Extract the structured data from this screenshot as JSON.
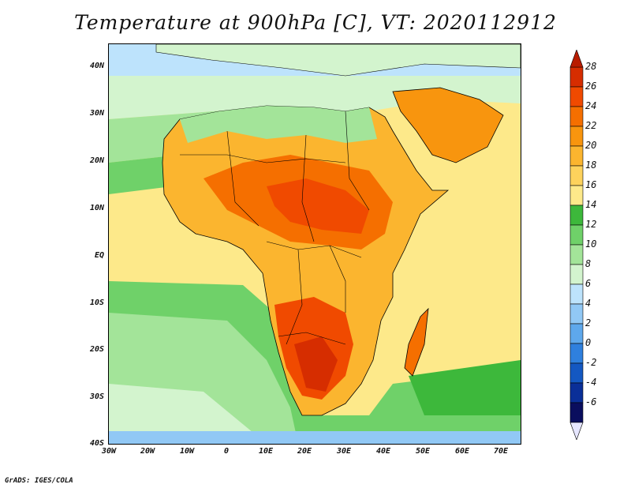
{
  "title": "Temperature at 900hPa [C], VT: 2020112912",
  "credit": "GrADS: IGES/COLA",
  "lat_labels": [
    "40N",
    "30N",
    "20N",
    "10N",
    "EQ",
    "10S",
    "20S",
    "30S",
    "40S"
  ],
  "lon_labels": [
    "30W",
    "20W",
    "10W",
    "0",
    "10E",
    "20E",
    "30E",
    "40E",
    "50E",
    "60E",
    "70E"
  ],
  "colorbar": {
    "labels": [
      "28",
      "26",
      "24",
      "22",
      "20",
      "18",
      "16",
      "14",
      "12",
      "10",
      "8",
      "6",
      "4",
      "2",
      "0",
      "-2",
      "-4",
      "-6"
    ],
    "colors": [
      "#d62d00",
      "#f04a00",
      "#f56f00",
      "#f8950e",
      "#fbb52f",
      "#fdd25c",
      "#fde98a",
      "#3db83b",
      "#6fd169",
      "#a3e499",
      "#d3f4ce",
      "#bde3fc",
      "#91c8f5",
      "#5ea8ec",
      "#2f80de",
      "#1458c2",
      "#0a2f98",
      "#0a0e5e"
    ],
    "top_arrow_color": "#b81c00",
    "bottom_arrow_color": "#e6e6ff"
  },
  "colors": {
    "ocean_warm": "#fde98a",
    "ocean_cool": "#a3e499",
    "ocean_green": "#3db83b",
    "sea_pale": "#d3f4ce",
    "sea_blue": "#91c8f5",
    "land_hot": "#f04a00",
    "land_warm": "#f8950e",
    "land_mild": "#fbb52f",
    "border": "#000000"
  }
}
